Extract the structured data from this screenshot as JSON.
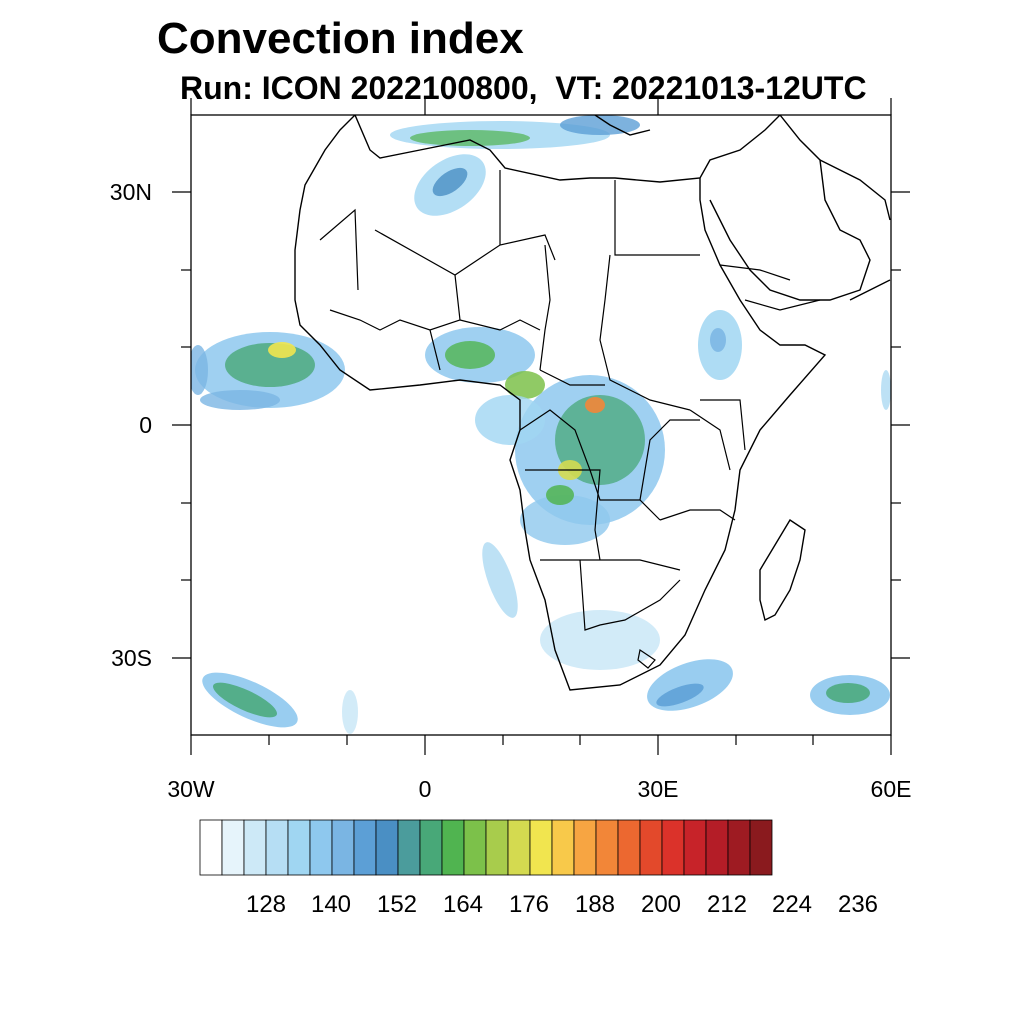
{
  "title": "Convection index",
  "subtitle": "Run: ICON 2022100800,  VT: 20221013-12UTC",
  "map": {
    "lon_range": [
      -30,
      60
    ],
    "lat_range": [
      -40,
      40
    ],
    "lat_tick_labels": [
      "30N",
      "0",
      "30S"
    ],
    "lon_tick_labels": [
      "30W",
      "0",
      "30E",
      "60E"
    ]
  },
  "colorbar": {
    "labels": [
      "128",
      "140",
      "152",
      "164",
      "176",
      "188",
      "200",
      "212",
      "224",
      "236"
    ],
    "colors": [
      "#ffffff",
      "#e6f4fb",
      "#cde9f7",
      "#b6def4",
      "#a0d6f2",
      "#8ec8ee",
      "#7ab5e3",
      "#5c9fd6",
      "#4a8fc4",
      "#4b9c9c",
      "#48a878",
      "#50b450",
      "#7cc14a",
      "#a8cc4c",
      "#d4da50",
      "#f1e54f",
      "#f8c94a",
      "#f7a542",
      "#f28638",
      "#ec6830",
      "#e3492b",
      "#db322a",
      "#c72329",
      "#b41d27",
      "#9e1b22",
      "#8a1a1e"
    ]
  },
  "legend": {
    "scale_hint": "convection index (colour scale)"
  }
}
